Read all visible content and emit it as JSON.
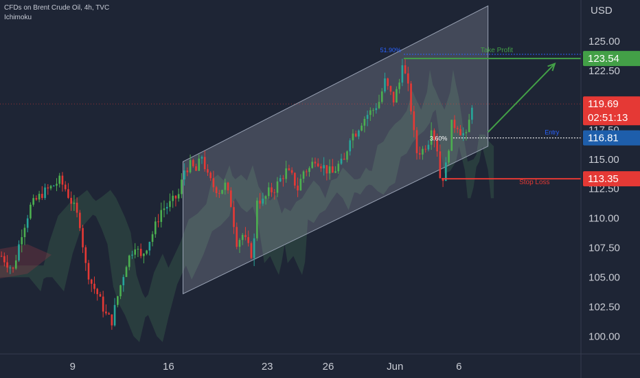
{
  "header": {
    "title": "CFDs on Brent Crude Oil, 4h, TVC",
    "indicator": "Ichimoku"
  },
  "colors": {
    "bg": "#1e2535",
    "up": "#26a69a",
    "up_alt": "#4caf50",
    "down": "#e53935",
    "channel_fill": "#c9cfda",
    "tp": "#43a047",
    "sl": "#e53935",
    "entry": "#1e5eab",
    "current": "#e53935"
  },
  "chart_data": {
    "type": "candlestick",
    "title": "CFDs on Brent Crude Oil, 4h, TVC",
    "currency_label": "USD",
    "ylim": [
      98.5,
      128.5
    ],
    "xlim": [
      0,
      200
    ],
    "y_ticks": [
      "125.00",
      "122.50",
      "117.50",
      "115.00",
      "112.50",
      "110.00",
      "107.50",
      "105.00",
      "102.50",
      "100.00"
    ],
    "x_ticks": [
      {
        "label": "9",
        "x": 25
      },
      {
        "label": "16",
        "x": 58
      },
      {
        "label": "23",
        "x": 92
      },
      {
        "label": "26",
        "x": 113
      },
      {
        "label": "Jun",
        "x": 136
      },
      {
        "label": "6",
        "x": 158
      }
    ],
    "ohlc": [],
    "channel": {
      "upper": [
        [
          63,
          114.8
        ],
        [
          168,
          128.0
        ]
      ],
      "lower": [
        [
          63,
          103.6
        ],
        [
          168,
          116.1
        ]
      ]
    },
    "price_labels": {
      "take_profit": {
        "label": "Take Profit",
        "value": "123.54"
      },
      "entry": {
        "label": "Entry",
        "value": "116.81"
      },
      "stop_loss": {
        "label": "Stop Loss",
        "value": "113.35"
      },
      "current": {
        "value": "119.69",
        "countdown": "02:51:13"
      },
      "percent": "3.60%",
      "swing_high": "51.90%"
    }
  }
}
